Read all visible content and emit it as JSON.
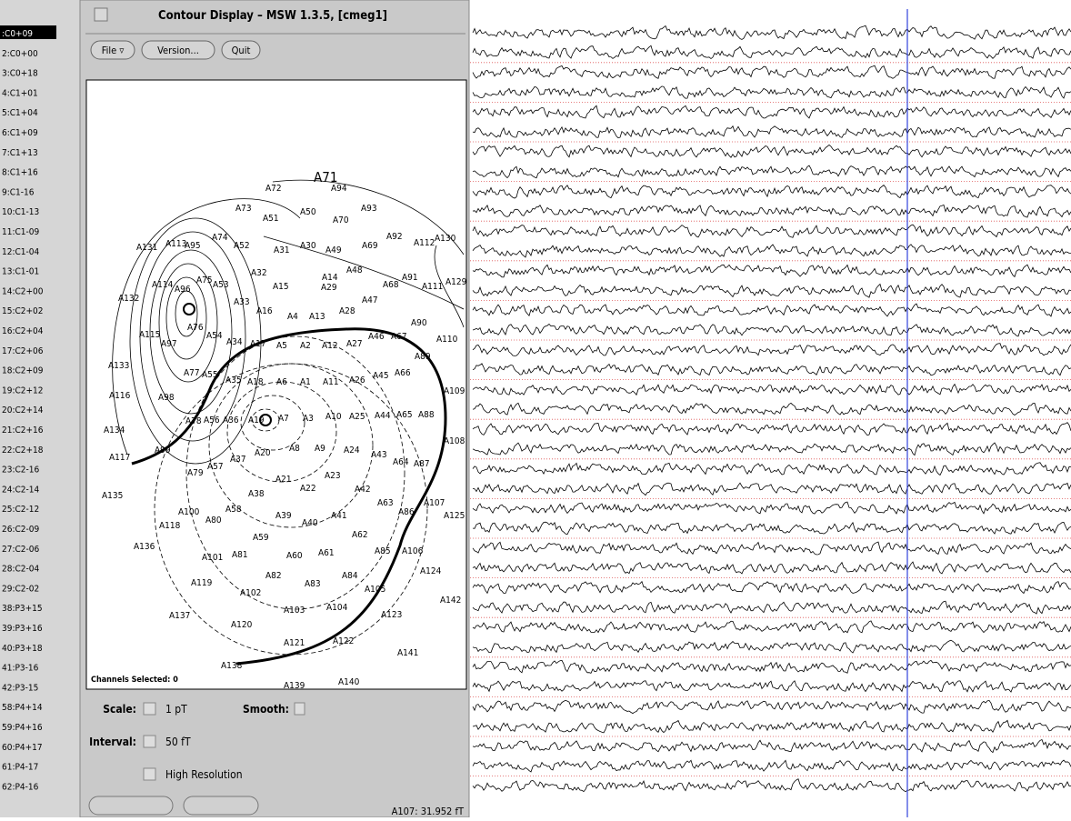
{
  "channels": [
    ":C0+09",
    "2:C0+00",
    "3:C0+18",
    "4:C1+01",
    "5:C1+04",
    "6:C1+09",
    "7:C1+13",
    "8:C1+16",
    "9:C1-16",
    "10:C1-13",
    "11:C1-09",
    "12:C1-04",
    "13:C1-01",
    "14:C2+00",
    "15:C2+02",
    "16:C2+04",
    "17:C2+06",
    "18:C2+09",
    "19:C2+12",
    "20:C2+14",
    "21:C2+16",
    "22:C2+18",
    "23:C2-16",
    "24:C2-14",
    "25:C2-12",
    "26:C2-09",
    "27:C2-06",
    "28:C2-04",
    "29:C2-02",
    "38:P3+15",
    "39:P3+16",
    "40:P3+18",
    "41:P3-16",
    "42:P3-15",
    "58:P4+14",
    "59:P4+16",
    "60:P4+17",
    "61:P4-17",
    "62:P4-16"
  ],
  "window": {
    "title": "Contour Display – MSW 1.3.5, [cmeg1]",
    "buttons": [
      "File ▿",
      "Version...",
      "Quit"
    ],
    "map": {
      "channels_selected": "Channels Selected: 0",
      "sensors": [
        "A71",
        "A72",
        "A94",
        "A73",
        "A50",
        "A93",
        "A51",
        "A70",
        "A74",
        "A52",
        "A31",
        "A30",
        "A49",
        "A69",
        "A92",
        "A112",
        "A130",
        "A131",
        "A113",
        "A95",
        "A32",
        "A48",
        "A14",
        "A15",
        "A91",
        "A111",
        "A129",
        "A114",
        "A96",
        "A75",
        "A53",
        "A29",
        "A68",
        "A132",
        "A33",
        "A47",
        "A16",
        "A28",
        "A4",
        "A13",
        "A90",
        "A67",
        "A46",
        "A110",
        "A115",
        "A97",
        "A76",
        "A54",
        "A34",
        "A17",
        "A5",
        "A2",
        "A12",
        "A27",
        "A133",
        "A77",
        "A55",
        "A35",
        "A18",
        "A6",
        "A1",
        "A11",
        "A26",
        "A45",
        "A66",
        "A89",
        "A109",
        "A116",
        "A98",
        "A78",
        "A56",
        "A36",
        "A19",
        "A7",
        "A3",
        "A10",
        "A25",
        "A44",
        "A65",
        "A88",
        "A134",
        "A117",
        "A99",
        "A20",
        "A8",
        "A9",
        "A24",
        "A43",
        "A64",
        "A87",
        "A108",
        "A79",
        "A57",
        "A37",
        "A21",
        "A23",
        "A22",
        "A38",
        "A42",
        "A135",
        "A100",
        "A58",
        "A63",
        "A86",
        "A107",
        "A125",
        "A118",
        "A80",
        "A39",
        "A40",
        "A41",
        "A62",
        "A136",
        "A59",
        "A85",
        "A106",
        "A101",
        "A81",
        "A60",
        "A61",
        "A84",
        "A124",
        "A82",
        "A83",
        "A119",
        "A102",
        "A105",
        "A142",
        "A103",
        "A104",
        "A123",
        "A137",
        "A120",
        "A121",
        "A122",
        "A141",
        "A138",
        "A140",
        "A139"
      ]
    },
    "controls": {
      "scale_label": "Scale:",
      "scale_value": "1 pT",
      "smooth_label": "Smooth:",
      "interval_label": "Interval:",
      "interval_value": "50 fT",
      "high_resolution": "High Resolution"
    },
    "status": "A107: 31.952 fT"
  }
}
